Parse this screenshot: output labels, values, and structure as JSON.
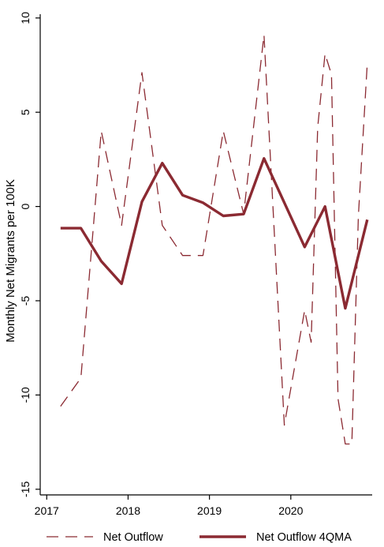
{
  "chart_data": {
    "type": "line",
    "title": "",
    "xlabel": "",
    "ylabel": "Monthly Net Migrants per 100K",
    "xlim": [
      2016.92,
      2021.0
    ],
    "ylim": [
      -15.3,
      10.2
    ],
    "x_ticks": [
      2017,
      2018,
      2019,
      2020
    ],
    "x_tick_labels": [
      "2017",
      "2018",
      "2019",
      "2020"
    ],
    "y_ticks": [
      10,
      5,
      0,
      -5,
      -10,
      -15
    ],
    "y_tick_labels": [
      "10",
      "5",
      "0",
      "-5",
      "-10",
      "-15"
    ],
    "grid": false,
    "legend_position": "bottom",
    "series": [
      {
        "name": "Net Outflow",
        "style": "dashed",
        "color": "#8b2a32",
        "x": [
          2017.17,
          2017.42,
          2017.67,
          2017.92,
          2018.17,
          2018.42,
          2018.67,
          2018.92,
          2019.17,
          2019.42,
          2019.67,
          2019.92,
          2020.17,
          2020.25,
          2020.33,
          2020.42,
          2020.5,
          2020.58,
          2020.67,
          2020.75,
          2020.83,
          2020.94
        ],
        "values": [
          -10.6,
          -9.1,
          4.0,
          -1.0,
          7.1,
          -1.0,
          -2.6,
          -2.6,
          4.0,
          -0.4,
          9.1,
          -11.6,
          -5.5,
          -7.2,
          4.2,
          8.1,
          7.0,
          -10.2,
          -12.6,
          -12.6,
          -0.5,
          7.6
        ]
      },
      {
        "name": "Net Outflow 4QMA",
        "style": "solid",
        "color": "#8b2a32",
        "x": [
          2017.17,
          2017.42,
          2017.67,
          2017.92,
          2018.17,
          2018.42,
          2018.67,
          2018.92,
          2019.17,
          2019.42,
          2019.67,
          2019.92,
          2020.17,
          2020.42,
          2020.67,
          2020.94
        ],
        "values": [
          -1.15,
          -1.15,
          -2.9,
          -4.1,
          0.25,
          2.3,
          0.6,
          0.2,
          -0.5,
          -0.4,
          2.55,
          0.2,
          -2.15,
          0.0,
          -5.4,
          -0.7
        ]
      }
    ]
  }
}
